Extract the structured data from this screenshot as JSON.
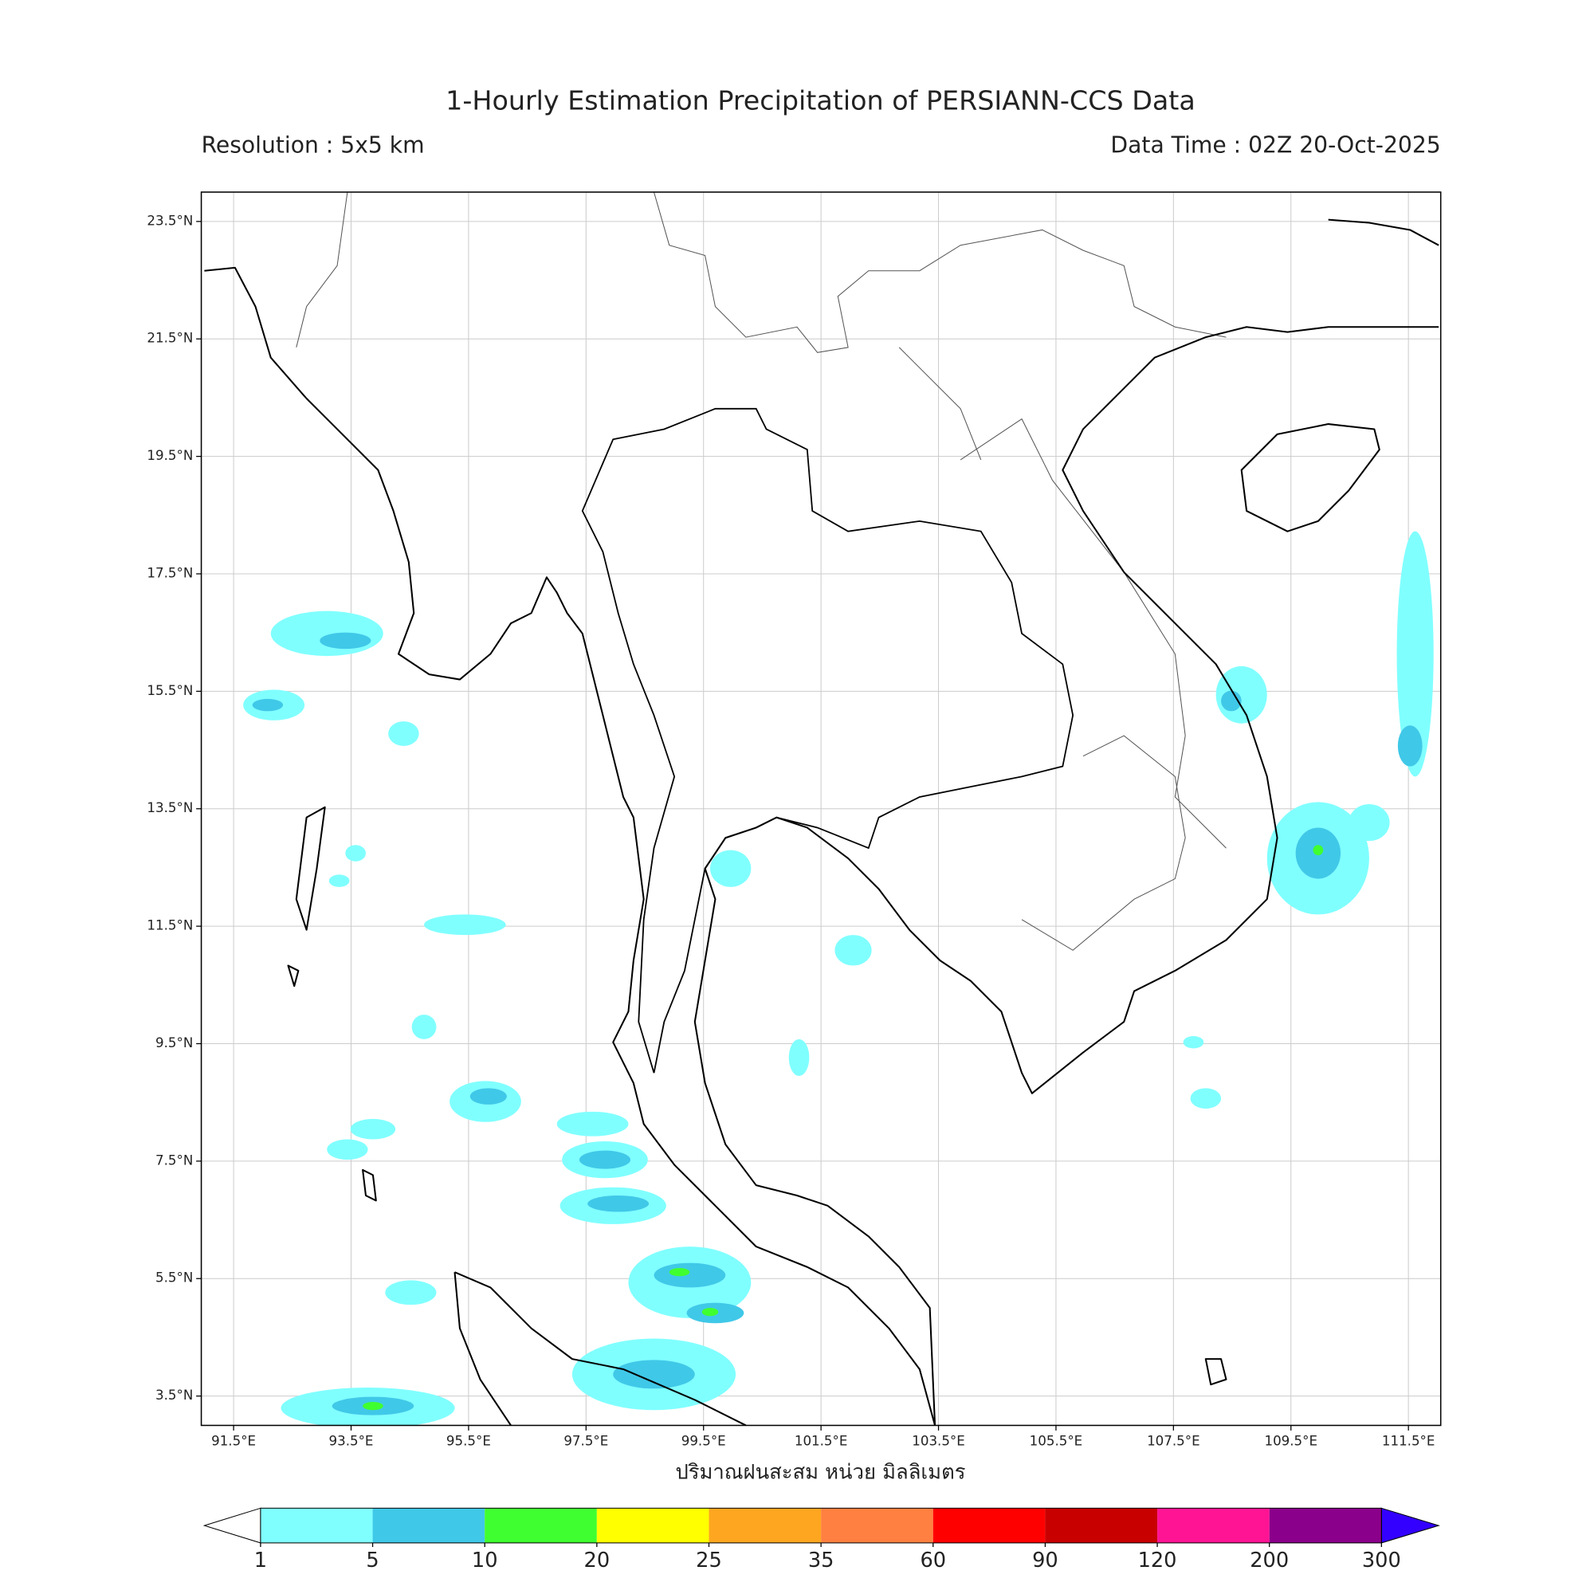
{
  "title": "1-Hourly Estimation Precipitation of PERSIANN-CCS Data",
  "resolution": "Resolution : 5x5 km",
  "data_time": "Data Time : 02Z 20-Oct-2025",
  "map": {
    "xlim": [
      90.95,
      112.05
    ],
    "ylim": [
      3.0,
      24.0
    ],
    "grid": true,
    "xticks": [
      {
        "value": 91.5,
        "label": "91.5°E"
      },
      {
        "value": 93.5,
        "label": "93.5°E"
      },
      {
        "value": 95.5,
        "label": "95.5°E"
      },
      {
        "value": 97.5,
        "label": "97.5°E"
      },
      {
        "value": 99.5,
        "label": "99.5°E"
      },
      {
        "value": 101.5,
        "label": "101.5°E"
      },
      {
        "value": 103.5,
        "label": "103.5°E"
      },
      {
        "value": 105.5,
        "label": "105.5°E"
      },
      {
        "value": 107.5,
        "label": "107.5°E"
      },
      {
        "value": 109.5,
        "label": "109.5°E"
      },
      {
        "value": 111.5,
        "label": "111.5°E"
      }
    ],
    "yticks": [
      {
        "value": 3.5,
        "label": "3.5°N"
      },
      {
        "value": 5.5,
        "label": "5.5°N"
      },
      {
        "value": 7.5,
        "label": "7.5°N"
      },
      {
        "value": 9.5,
        "label": "9.5°N"
      },
      {
        "value": 11.5,
        "label": "11.5°N"
      },
      {
        "value": 13.5,
        "label": "13.5°N"
      },
      {
        "value": 15.5,
        "label": "15.5°N"
      },
      {
        "value": 17.5,
        "label": "17.5°N"
      },
      {
        "value": 19.5,
        "label": "19.5°N"
      },
      {
        "value": 21.5,
        "label": "21.5°N"
      },
      {
        "value": 23.5,
        "label": "23.5°N"
      }
    ],
    "xlabel": "ปริมาณฝนสะสม หน่วย มิลลิเมตร"
  },
  "colorbar": {
    "levels": [
      1,
      5,
      10,
      20,
      25,
      35,
      60,
      90,
      120,
      200,
      300
    ],
    "colors": [
      "#80ffff",
      "#40c8e8",
      "#40ff30",
      "#ffff00",
      "#ffa620",
      "#ff8040",
      "#ff0000",
      "#c80000",
      "#ff1493",
      "#8b008b"
    ],
    "under_color": "#ffffff",
    "over_color": "#3300ff"
  }
}
